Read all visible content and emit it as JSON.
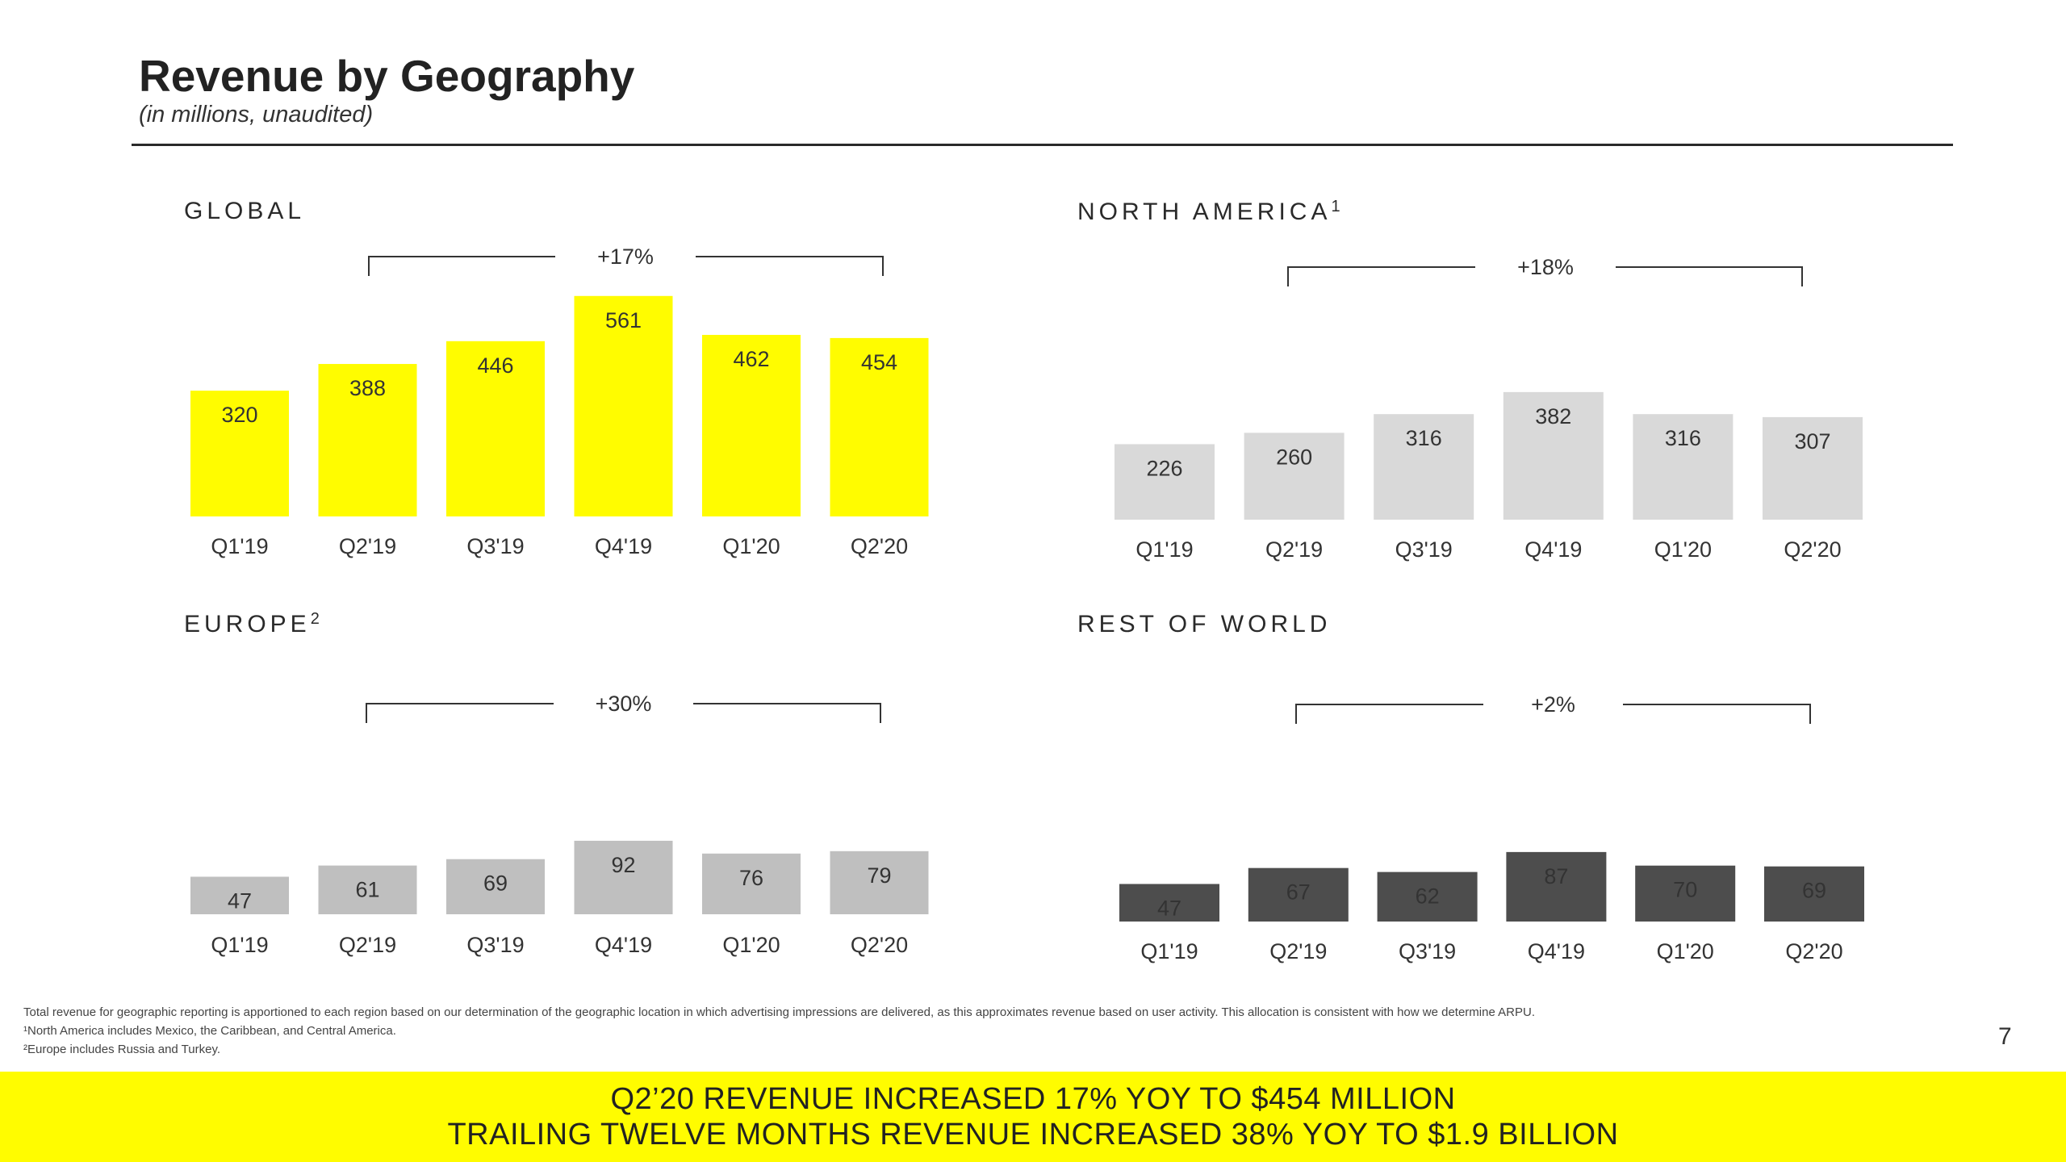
{
  "page": {
    "title": "Revenue by Geography",
    "subtitle": "(in millions, unaudited)",
    "page_number": "7"
  },
  "colors": {
    "global": "#fffc00",
    "north_america": "#d9d9d9",
    "europe": "#bfbfbf",
    "rest_of_world": "#4d4d4d",
    "banner": "#fffc00"
  },
  "chart_data": [
    {
      "type": "bar",
      "title": "GLOBAL",
      "categories": [
        "Q1'19",
        "Q2'19",
        "Q3'19",
        "Q4'19",
        "Q1'20",
        "Q2'20"
      ],
      "values": [
        320,
        388,
        446,
        561,
        462,
        454
      ],
      "growth": "+17%",
      "color_key": "global",
      "label_color": "#222222",
      "xlabel": "",
      "ylabel": "",
      "ylim": [
        0,
        600
      ]
    },
    {
      "type": "bar",
      "title": "NORTH AMERICA",
      "title_sup": "1",
      "categories": [
        "Q1'19",
        "Q2'19",
        "Q3'19",
        "Q4'19",
        "Q1'20",
        "Q2'20"
      ],
      "values": [
        226,
        260,
        316,
        382,
        316,
        307
      ],
      "growth": "+18%",
      "color_key": "north_america",
      "label_color": "#333333",
      "xlabel": "",
      "ylabel": "",
      "ylim": [
        0,
        600
      ]
    },
    {
      "type": "bar",
      "title": "EUROPE",
      "title_sup": "2",
      "categories": [
        "Q1'19",
        "Q2'19",
        "Q3'19",
        "Q4'19",
        "Q1'20",
        "Q2'20"
      ],
      "values": [
        47,
        61,
        69,
        92,
        76,
        79
      ],
      "growth": "+30%",
      "color_key": "europe",
      "label_color": "#333333",
      "xlabel": "",
      "ylabel": "",
      "ylim": [
        0,
        600
      ]
    },
    {
      "type": "bar",
      "title": "REST OF WORLD",
      "categories": [
        "Q1'19",
        "Q2'19",
        "Q3'19",
        "Q4'19",
        "Q1'20",
        "Q2'20"
      ],
      "values": [
        47,
        67,
        62,
        87,
        70,
        69
      ],
      "growth": "+2%",
      "color_key": "rest_of_world",
      "label_color": "#ffffff",
      "xlabel": "",
      "ylabel": "",
      "ylim": [
        0,
        600
      ]
    }
  ],
  "footnotes": {
    "line1": "Total revenue for geographic reporting is apportioned to each region based on our determination of the geographic location in which advertising impressions are delivered, as this approximates revenue based on user activity.  This allocation is consistent with how we determine ARPU.",
    "line2": "¹North America includes Mexico, the Caribbean, and Central America.",
    "line3": "²Europe includes Russia and Turkey."
  },
  "banner": {
    "line1": "Q2’20 REVENUE INCREASED 17% YOY TO $454 MILLION",
    "line2": "TRAILING TWELVE MONTHS REVENUE INCREASED 38% YOY TO $1.9 BILLION"
  }
}
